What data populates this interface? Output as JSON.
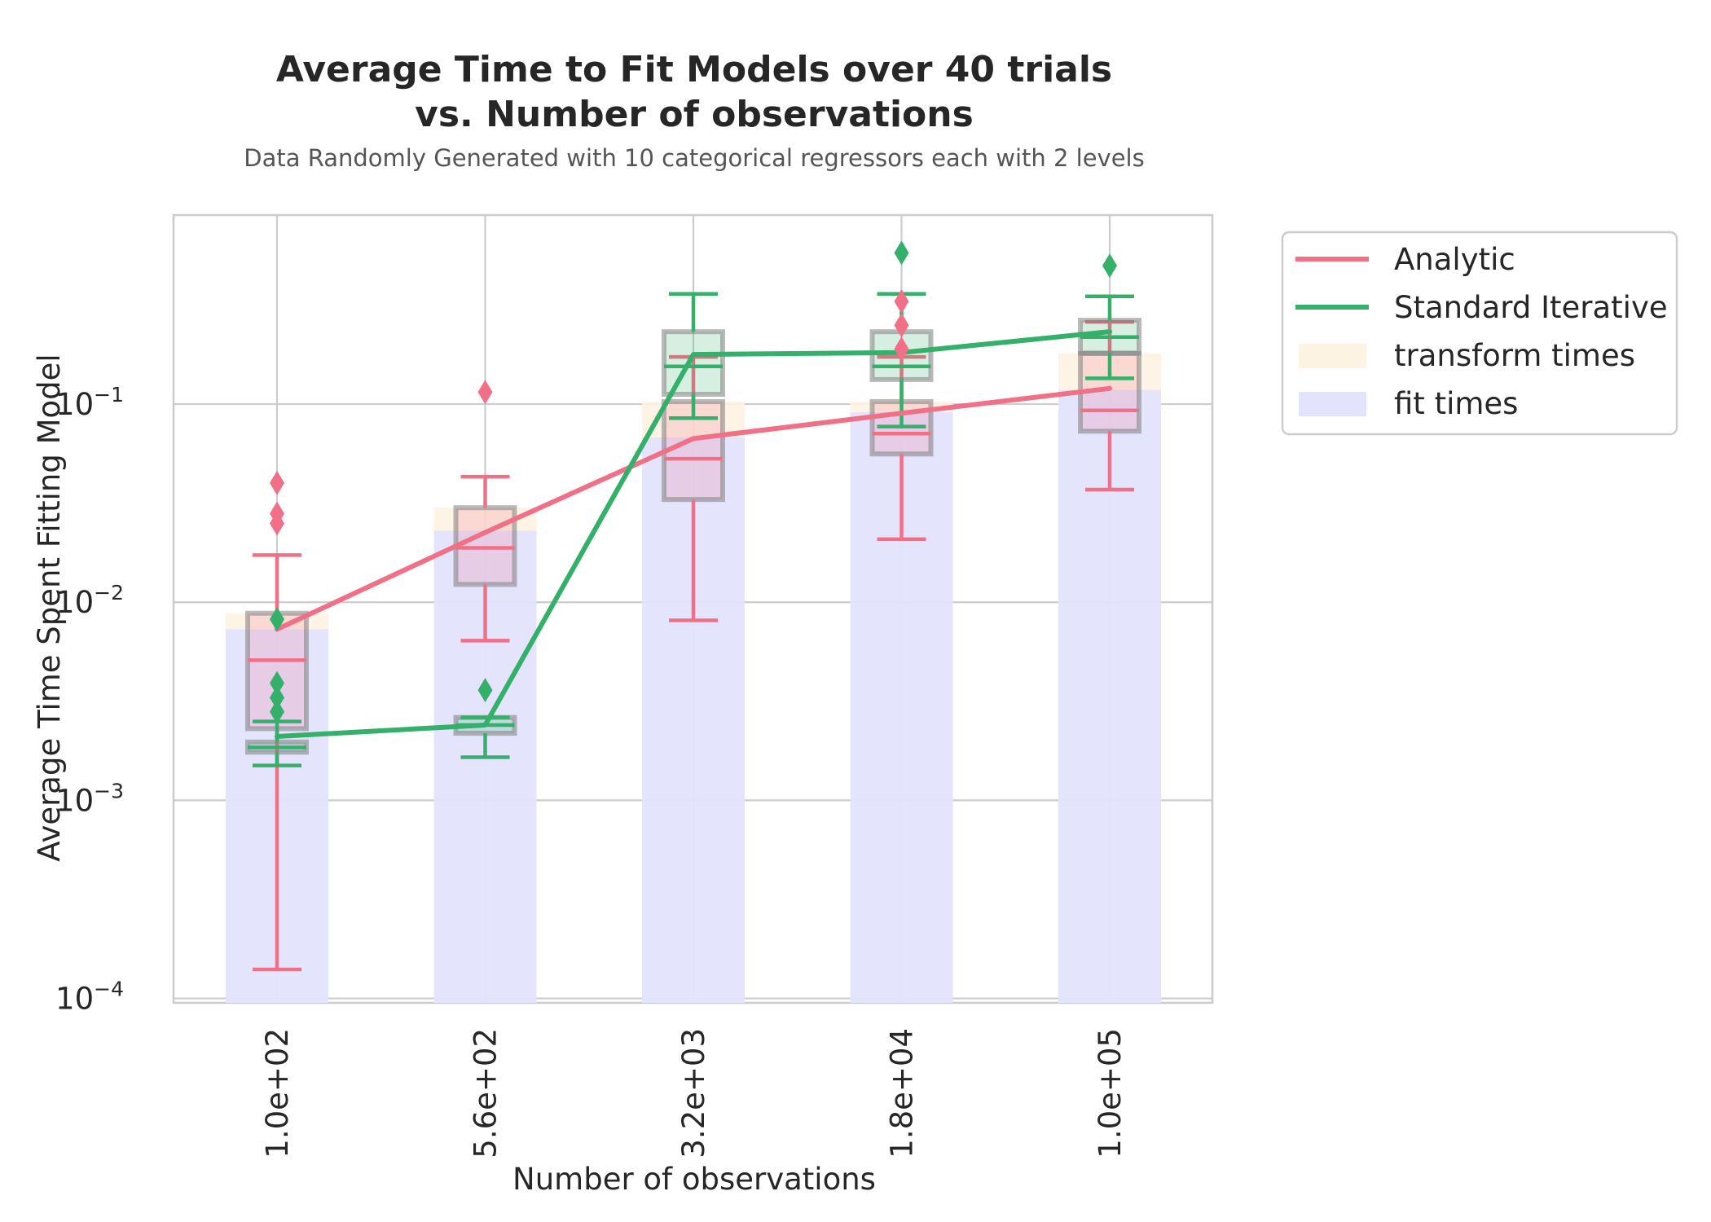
{
  "chart_data": {
    "type": "box",
    "title_line1": "Average Time to Fit Models over 40 trials",
    "title_line2": "vs. Number of observations",
    "subtitle": "Data Randomly Generated with 10 categorical regressors each with 2 levels",
    "xlabel": "Number of observations",
    "ylabel": "Average Time Spent Fitting Model",
    "yscale": "log",
    "ylim": [
      9.5e-05,
      0.9
    ],
    "grid": true,
    "legend_position": "outside-right",
    "categories": [
      "1.0e+02",
      "5.6e+02",
      "3.2e+03",
      "1.8e+04",
      "1.0e+05"
    ],
    "y_ticks": [
      {
        "value": 0.1,
        "base": "10",
        "exp": "−1"
      },
      {
        "value": 0.01,
        "base": "10",
        "exp": "−2"
      },
      {
        "value": 0.001,
        "base": "10",
        "exp": "−3"
      },
      {
        "value": 0.0001,
        "base": "10",
        "exp": "−4"
      }
    ],
    "legend": {
      "analytic": "Analytic",
      "standard_iterative": "Standard Iterative",
      "transform_times": "transform times",
      "fit_times": "fit times"
    },
    "colors": {
      "analytic": "#f07088",
      "standard_iterative": "#34b06a",
      "transform_times": "#fdf3e2",
      "fit_times": "#e3e3fd",
      "box_edge": "#7f7f7f",
      "grid": "#cccccc"
    },
    "fit_times": [
      0.0073,
      0.023,
      0.068,
      0.091,
      0.118
    ],
    "transform_times": [
      0.0088,
      0.03,
      0.103,
      0.103,
      0.18
    ],
    "series": [
      {
        "name": "Analytic",
        "key": "analytic",
        "line": [
          0.0073,
          0.0225,
          0.067,
          0.09,
          0.12
        ],
        "boxes": [
          {
            "whislo": 0.00014,
            "q1": 0.0023,
            "med": 0.0051,
            "q3": 0.0088,
            "whishi": 0.0173,
            "fliers": [
              0.04,
              0.028,
              0.025
            ]
          },
          {
            "whislo": 0.0064,
            "q1": 0.0123,
            "med": 0.0188,
            "q3": 0.03,
            "whishi": 0.043,
            "fliers": [
              0.115
            ]
          },
          {
            "whislo": 0.0081,
            "q1": 0.033,
            "med": 0.053,
            "q3": 0.103,
            "whishi": 0.173,
            "fliers": []
          },
          {
            "whislo": 0.0208,
            "q1": 0.056,
            "med": 0.071,
            "q3": 0.103,
            "whishi": 0.173,
            "fliers": [
              0.33,
              0.25,
              0.19
            ]
          },
          {
            "whislo": 0.037,
            "q1": 0.073,
            "med": 0.093,
            "q3": 0.18,
            "whishi": 0.26,
            "fliers": []
          }
        ]
      },
      {
        "name": "Standard Iterative",
        "key": "standard_iterative",
        "line": [
          0.0021,
          0.0024,
          0.178,
          0.182,
          0.232
        ],
        "boxes": [
          {
            "whislo": 0.0015,
            "q1": 0.00175,
            "med": 0.00185,
            "q3": 0.00197,
            "whishi": 0.0025,
            "fliers": [
              0.0082,
              0.0039,
              0.0033,
              0.0028
            ]
          },
          {
            "whislo": 0.00165,
            "q1": 0.00218,
            "med": 0.0024,
            "q3": 0.00262,
            "whishi": 0.00262,
            "fliers": [
              0.0036
            ]
          },
          {
            "whislo": 0.085,
            "q1": 0.112,
            "med": 0.155,
            "q3": 0.232,
            "whishi": 0.36,
            "fliers": []
          },
          {
            "whislo": 0.077,
            "q1": 0.133,
            "med": 0.155,
            "q3": 0.232,
            "whishi": 0.36,
            "fliers": [
              0.58
            ]
          },
          {
            "whislo": 0.135,
            "q1": 0.181,
            "med": 0.218,
            "q3": 0.265,
            "whishi": 0.35,
            "fliers": [
              0.5
            ]
          }
        ]
      }
    ]
  }
}
